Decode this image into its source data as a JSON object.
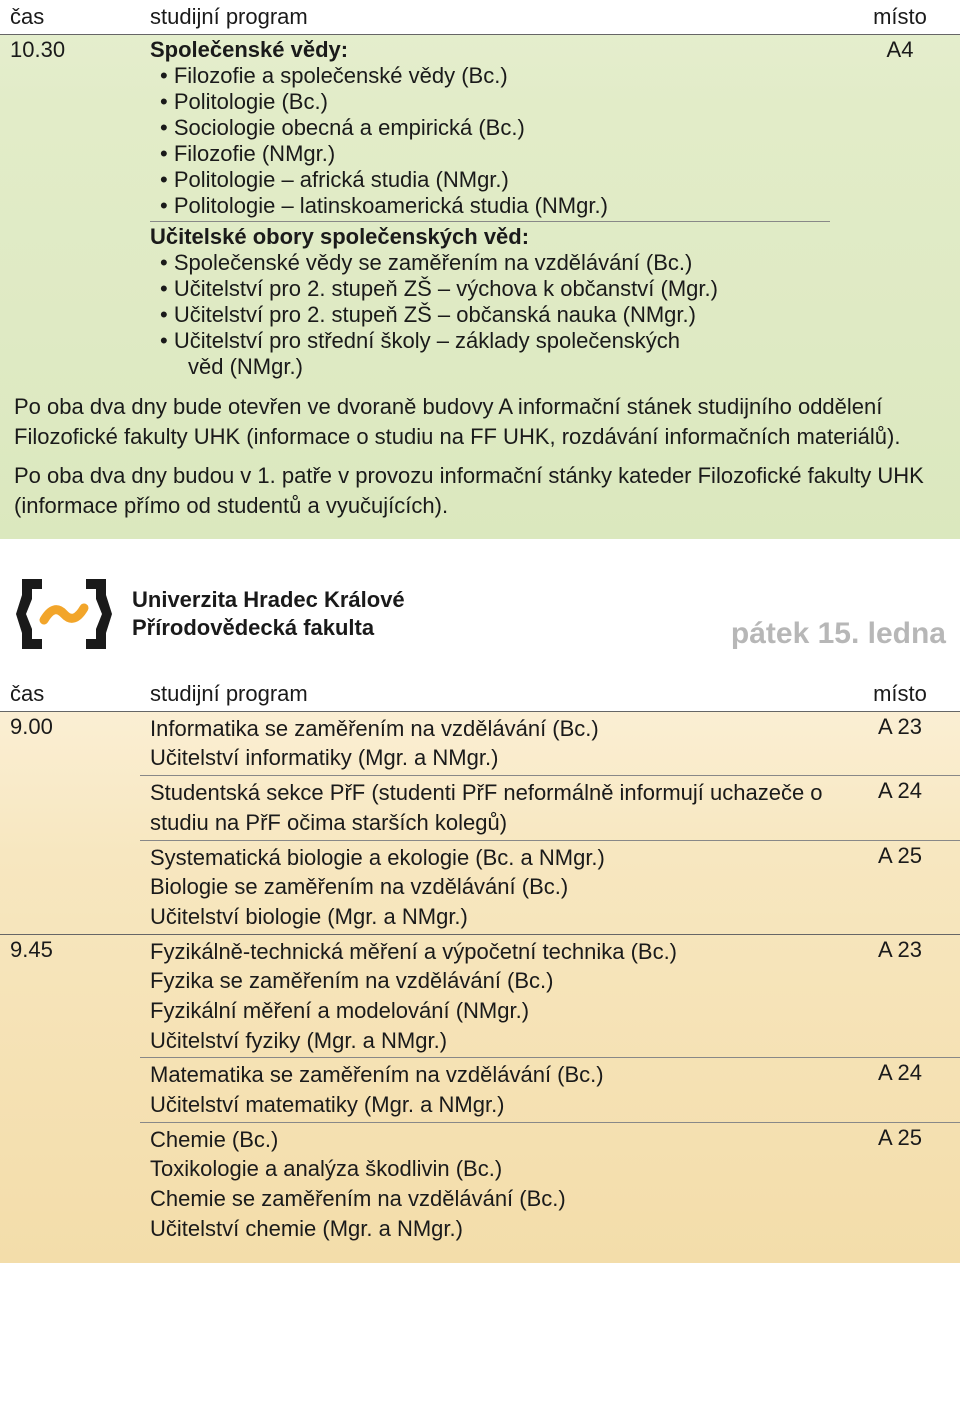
{
  "headers": {
    "time": "čas",
    "program": "studijní program",
    "place": "místo"
  },
  "green": {
    "row": {
      "time": "10.30",
      "place": "A4",
      "group1_title": "Společenské vědy:",
      "group1_items": [
        "Filozofie a společenské vědy (Bc.)",
        "Politologie (Bc.)",
        "Sociologie obecná a empirická (Bc.)",
        "Filozofie (NMgr.)",
        "Politologie – africká studia (NMgr.)",
        "Politologie – latinskoamerická studia (NMgr.)"
      ],
      "group2_title": "Učitelské obory společenských věd:",
      "group2_items": [
        "Společenské vědy se zaměřením na vzdělávání (Bc.)",
        "Učitelství pro 2. stupeň ZŠ – výchova k občanství (Mgr.)",
        "Učitelství pro 2. stupeň ZŠ – občanská nauka (NMgr.)",
        "Učitelství pro střední školy – základy společenských",
        "věd (NMgr.)"
      ]
    },
    "note1": "Po oba dva dny bude otevřen ve dvoraně budovy A informační stánek studijního oddělení Filozofické fakulty UHK (informace o studiu na FF UHK, rozdávání informačních materiálů).",
    "note2": "Po oba dva dny budou v 1. patře v provozu informační stánky kateder Filozofické fakulty UHK (informace přímo od studentů a vyučujících)."
  },
  "faculty": {
    "line1": "Univerzita Hradec Králové",
    "line2": "Přírodovědecká fakulta",
    "date": "pátek 15. ledna",
    "logo_colors": {
      "bracket": "#1a1a1a",
      "tilde": "#f2a52a"
    }
  },
  "orange": {
    "rows": [
      {
        "time": "9.00",
        "slots": [
          {
            "place": "A 23",
            "lines": [
              "Informatika se zaměřením na vzdělávání (Bc.)",
              "Učitelství informatiky (Mgr. a NMgr.)"
            ]
          },
          {
            "place": "A 24",
            "lines": [
              "Studentská sekce PřF (studenti PřF neformálně informují uchazeče o studiu na PřF očima starších kolegů)"
            ]
          },
          {
            "place": "A 25",
            "lines": [
              "Systematická biologie a ekologie (Bc. a NMgr.)",
              "Biologie se zaměřením na vzdělávání (Bc.)",
              "Učitelství biologie (Mgr. a NMgr.)"
            ]
          }
        ]
      },
      {
        "time": "9.45",
        "slots": [
          {
            "place": "A 23",
            "lines": [
              "Fyzikálně-technická měření a výpočetní technika (Bc.)",
              "Fyzika se zaměřením na vzdělávání (Bc.)",
              "Fyzikální měření a modelování (NMgr.)",
              "Učitelství fyziky (Mgr. a NMgr.)"
            ]
          },
          {
            "place": "A 24",
            "lines": [
              "Matematika se zaměřením na vzdělávání (Bc.)",
              "Učitelství matematiky (Mgr. a NMgr.)"
            ]
          },
          {
            "place": "A 25",
            "lines": [
              "Chemie (Bc.)",
              "Toxikologie a analýza škodlivin (Bc.)",
              "Chemie se zaměřením na vzdělávání (Bc.)",
              "Učitelství chemie (Mgr. a NMgr.)"
            ]
          }
        ]
      }
    ]
  }
}
